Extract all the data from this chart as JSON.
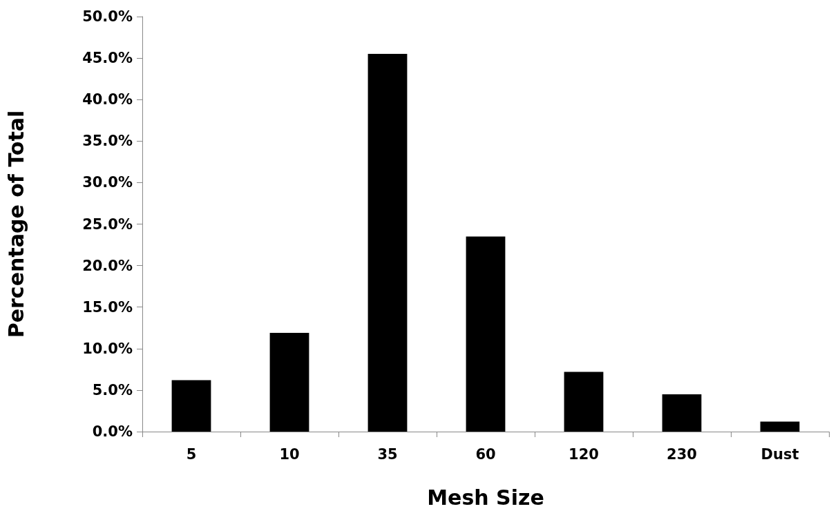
{
  "chart_data": {
    "type": "bar",
    "xlabel": "Mesh Size",
    "ylabel": "Percentage of Total",
    "categories": [
      "5",
      "10",
      "35",
      "60",
      "120",
      "230",
      "Dust"
    ],
    "values": [
      6.2,
      11.9,
      45.5,
      23.5,
      7.2,
      4.5,
      1.2
    ],
    "color": "#000000",
    "ylim": [
      0,
      50
    ],
    "yticks": [
      {
        "value": 0,
        "label": "0.0%"
      },
      {
        "value": 5,
        "label": "5.0%"
      },
      {
        "value": 10,
        "label": "10.0%"
      },
      {
        "value": 15,
        "label": "15.0%"
      },
      {
        "value": 20,
        "label": "20.0%"
      },
      {
        "value": 25,
        "label": "25.0%"
      },
      {
        "value": 30,
        "label": "30.0%"
      },
      {
        "value": 35,
        "label": "35.0%"
      },
      {
        "value": 40,
        "label": "40.0%"
      },
      {
        "value": 45,
        "label": "45.0%"
      },
      {
        "value": 50,
        "label": "50.0%"
      }
    ],
    "grid": false
  }
}
